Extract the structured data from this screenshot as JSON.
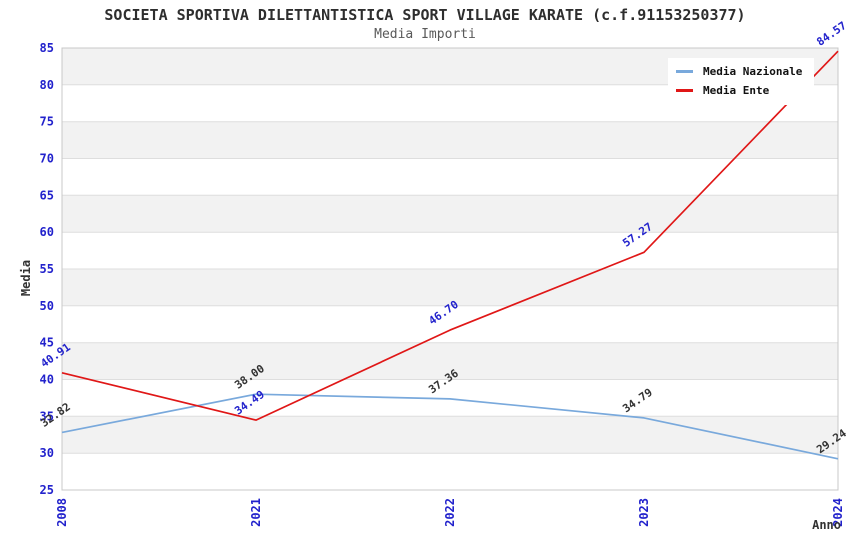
{
  "header": {
    "title": "SOCIETA SPORTIVA DILETTANTISTICA SPORT VILLAGE KARATE (c.f.91153250377)",
    "subtitle": "Media Importi"
  },
  "chart_data": {
    "type": "line",
    "categories": [
      "2008",
      "2021",
      "2022",
      "2023",
      "2024"
    ],
    "series": [
      {
        "name": "Media Nazionale",
        "color": "#79a9dc",
        "label_color": "#333333",
        "values": [
          32.82,
          38.0,
          37.36,
          34.79,
          29.24
        ]
      },
      {
        "name": "Media Ente",
        "color": "#e01717",
        "label_color": "#2222cc",
        "values": [
          40.91,
          34.49,
          46.7,
          57.27,
          84.57
        ]
      }
    ],
    "title": "Media Importi",
    "xlabel": "Anno",
    "ylabel": "Media",
    "ylim": [
      25,
      85
    ],
    "ytick_step": 5,
    "yticks": [
      25,
      30,
      35,
      40,
      45,
      50,
      55,
      60,
      65,
      70,
      75,
      80,
      85
    ],
    "legend_position": "top-right",
    "grid": "horizontal-bands",
    "band_colors": [
      "#f2f2f2",
      "#ffffff"
    ],
    "gridline_color": "#dedede",
    "border_color": "#c8c8c8",
    "axis_tick_color": "#2222cc"
  }
}
